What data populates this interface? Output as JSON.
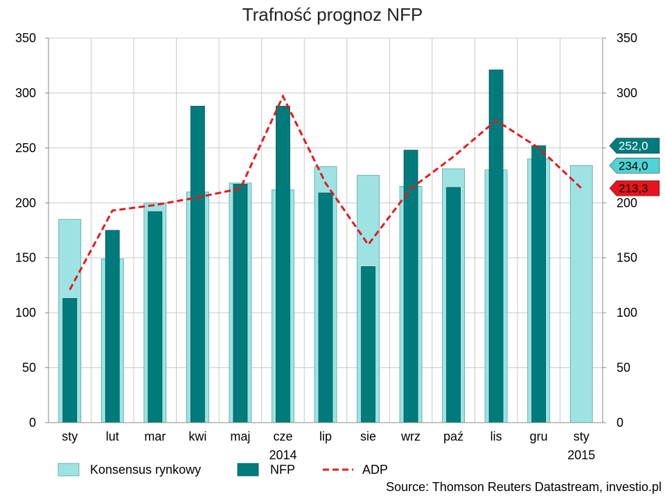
{
  "chart_data": {
    "type": "bar",
    "title": "Trafność prognoz NFP",
    "categories": [
      "sty",
      "lut",
      "mar",
      "kwi",
      "maj",
      "cze",
      "lip",
      "sie",
      "wrz",
      "paź",
      "lis",
      "gru",
      "sty"
    ],
    "year_labels": [
      {
        "category_index": 5,
        "text": "2014"
      },
      {
        "category_index": 12,
        "text": "2015"
      }
    ],
    "series": [
      {
        "name": "Konsensus rynkowy",
        "type": "bar",
        "color": "#9ee3e3",
        "values": [
          185,
          149,
          200,
          210,
          218,
          212,
          233,
          225,
          215,
          231,
          230,
          240,
          234
        ]
      },
      {
        "name": "NFP",
        "type": "bar",
        "color": "#007b7b",
        "values": [
          113,
          175,
          192,
          288,
          217,
          288,
          209,
          142,
          248,
          214,
          321,
          252,
          null
        ]
      },
      {
        "name": "ADP",
        "type": "line",
        "style": "dashed",
        "color": "#e31a1c",
        "values": [
          121,
          193,
          198,
          205,
          213,
          297,
          218,
          162,
          213,
          242,
          275,
          250,
          213.3
        ]
      }
    ],
    "ylim": [
      0,
      350
    ],
    "yticks": [
      0,
      50,
      100,
      150,
      200,
      250,
      300,
      350
    ],
    "right_axis": true,
    "grid": true,
    "legend_placement": "bottom-left",
    "end_labels": [
      {
        "text": "252,0",
        "value": 252,
        "color": "#007b7b",
        "text_color": "#ffffff"
      },
      {
        "text": "234,0",
        "value": 234,
        "color": "#4ed4d4",
        "text_color": "#000000"
      },
      {
        "text": "213,3",
        "value": 213.3,
        "color": "#e8141c",
        "text_color": "#000000"
      }
    ],
    "source": "Source: Thomson Reuters Datastream, investio.pl"
  }
}
